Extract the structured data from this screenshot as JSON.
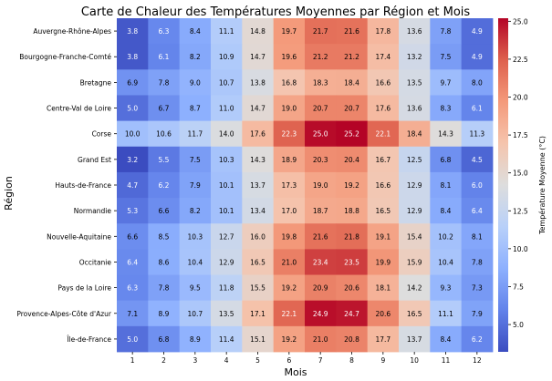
{
  "chart_data": {
    "type": "heatmap",
    "title": "Carte de Chaleur des Températures Moyennes par Région et Mois",
    "xlabel": "Mois",
    "ylabel": "Région",
    "colorbar_label": "Température Moyenne (°C)",
    "colormap": "coolwarm",
    "color_min": "#3b4cc0",
    "color_mid": "#dddddd",
    "color_max": "#b40426",
    "vmin": 3.2,
    "vmax": 25.2,
    "colorbar_ticks": [
      "5.0",
      "7.5",
      "10.0",
      "12.5",
      "15.0",
      "17.5",
      "20.0",
      "22.5",
      "25.0"
    ],
    "x": [
      "1",
      "2",
      "3",
      "4",
      "5",
      "6",
      "7",
      "8",
      "9",
      "10",
      "11",
      "12"
    ],
    "y": [
      "Auvergne-Rhône-Alpes",
      "Bourgogne-Franche-Comté",
      "Bretagne",
      "Centre-Val de Loire",
      "Corse",
      "Grand Est",
      "Hauts-de-France",
      "Normandie",
      "Nouvelle-Aquitaine",
      "Occitanie",
      "Pays de la Loire",
      "Provence-Alpes-Côte d'Azur",
      "Île-de-France"
    ],
    "values": [
      [
        3.8,
        6.3,
        8.4,
        11.1,
        14.8,
        19.7,
        21.7,
        21.6,
        17.8,
        13.6,
        7.8,
        4.9
      ],
      [
        3.8,
        6.1,
        8.2,
        10.9,
        14.7,
        19.6,
        21.2,
        21.2,
        17.4,
        13.2,
        7.5,
        4.9
      ],
      [
        6.9,
        7.8,
        9.0,
        10.7,
        13.8,
        16.8,
        18.3,
        18.4,
        16.6,
        13.5,
        9.7,
        8.0
      ],
      [
        5.0,
        6.7,
        8.7,
        11.0,
        14.7,
        19.0,
        20.7,
        20.7,
        17.6,
        13.6,
        8.3,
        6.1
      ],
      [
        10.0,
        10.6,
        11.7,
        14.0,
        17.6,
        22.3,
        25.0,
        25.2,
        22.1,
        18.4,
        14.3,
        11.3
      ],
      [
        3.2,
        5.5,
        7.5,
        10.3,
        14.3,
        18.9,
        20.3,
        20.4,
        16.7,
        12.5,
        6.8,
        4.5
      ],
      [
        4.7,
        6.2,
        7.9,
        10.1,
        13.7,
        17.3,
        19.0,
        19.2,
        16.6,
        12.9,
        8.1,
        6.0
      ],
      [
        5.3,
        6.6,
        8.2,
        10.1,
        13.4,
        17.0,
        18.7,
        18.8,
        16.5,
        12.9,
        8.4,
        6.4
      ],
      [
        6.6,
        8.5,
        10.3,
        12.7,
        16.0,
        19.8,
        21.6,
        21.8,
        19.1,
        15.4,
        10.2,
        8.1
      ],
      [
        6.4,
        8.6,
        10.4,
        12.9,
        16.5,
        21.0,
        23.4,
        23.5,
        19.9,
        15.9,
        10.4,
        7.8
      ],
      [
        6.3,
        7.8,
        9.5,
        11.8,
        15.5,
        19.2,
        20.9,
        20.6,
        18.1,
        14.2,
        9.3,
        7.3
      ],
      [
        7.1,
        8.9,
        10.7,
        13.5,
        17.1,
        22.1,
        24.9,
        24.7,
        20.6,
        16.5,
        11.1,
        7.9
      ],
      [
        5.0,
        6.8,
        8.9,
        11.4,
        15.1,
        19.2,
        21.0,
        20.8,
        17.7,
        13.7,
        8.4,
        6.2
      ]
    ]
  }
}
